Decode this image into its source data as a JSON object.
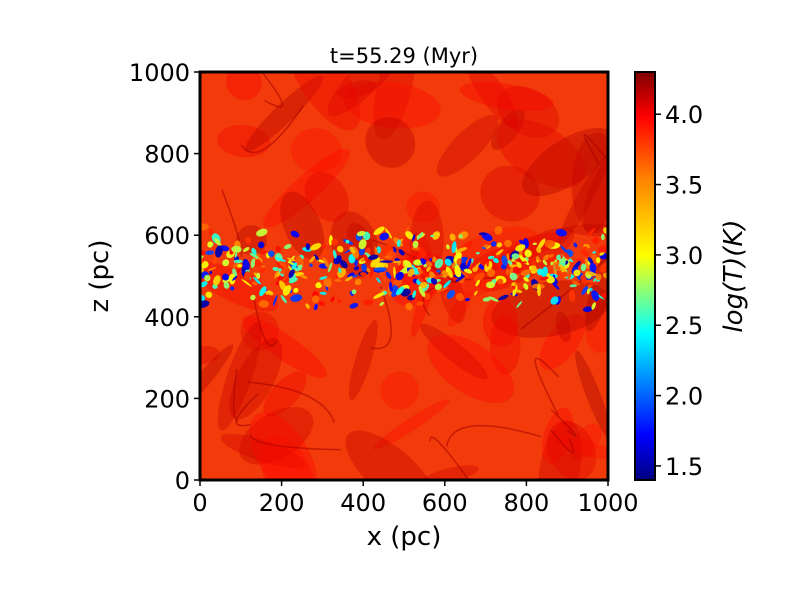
{
  "chart_data": {
    "type": "heatmap",
    "title": "t=55.29 (Myr)",
    "xlabel": "x (pc)",
    "ylabel": "z (pc)",
    "xlim": [
      0,
      1000
    ],
    "ylim": [
      0,
      1000
    ],
    "x_ticks": [
      "0",
      "200",
      "400",
      "600",
      "800",
      "1000"
    ],
    "y_ticks": [
      "0",
      "200",
      "400",
      "600",
      "800",
      "1000"
    ],
    "colorbar": {
      "label": "log(T)(K)",
      "range": [
        1.4,
        4.3
      ],
      "ticks": [
        "1.5",
        "2.0",
        "2.5",
        "3.0",
        "3.5",
        "4.0"
      ],
      "colormap": "jet"
    },
    "field": {
      "description_quantity": "log(T)",
      "hot_medium_logT": 4.05,
      "cold_layer_z_range": [
        420,
        620
      ],
      "cold_layer_min_logT": 1.5,
      "cold_layer_typical_logT": 3.2
    }
  }
}
